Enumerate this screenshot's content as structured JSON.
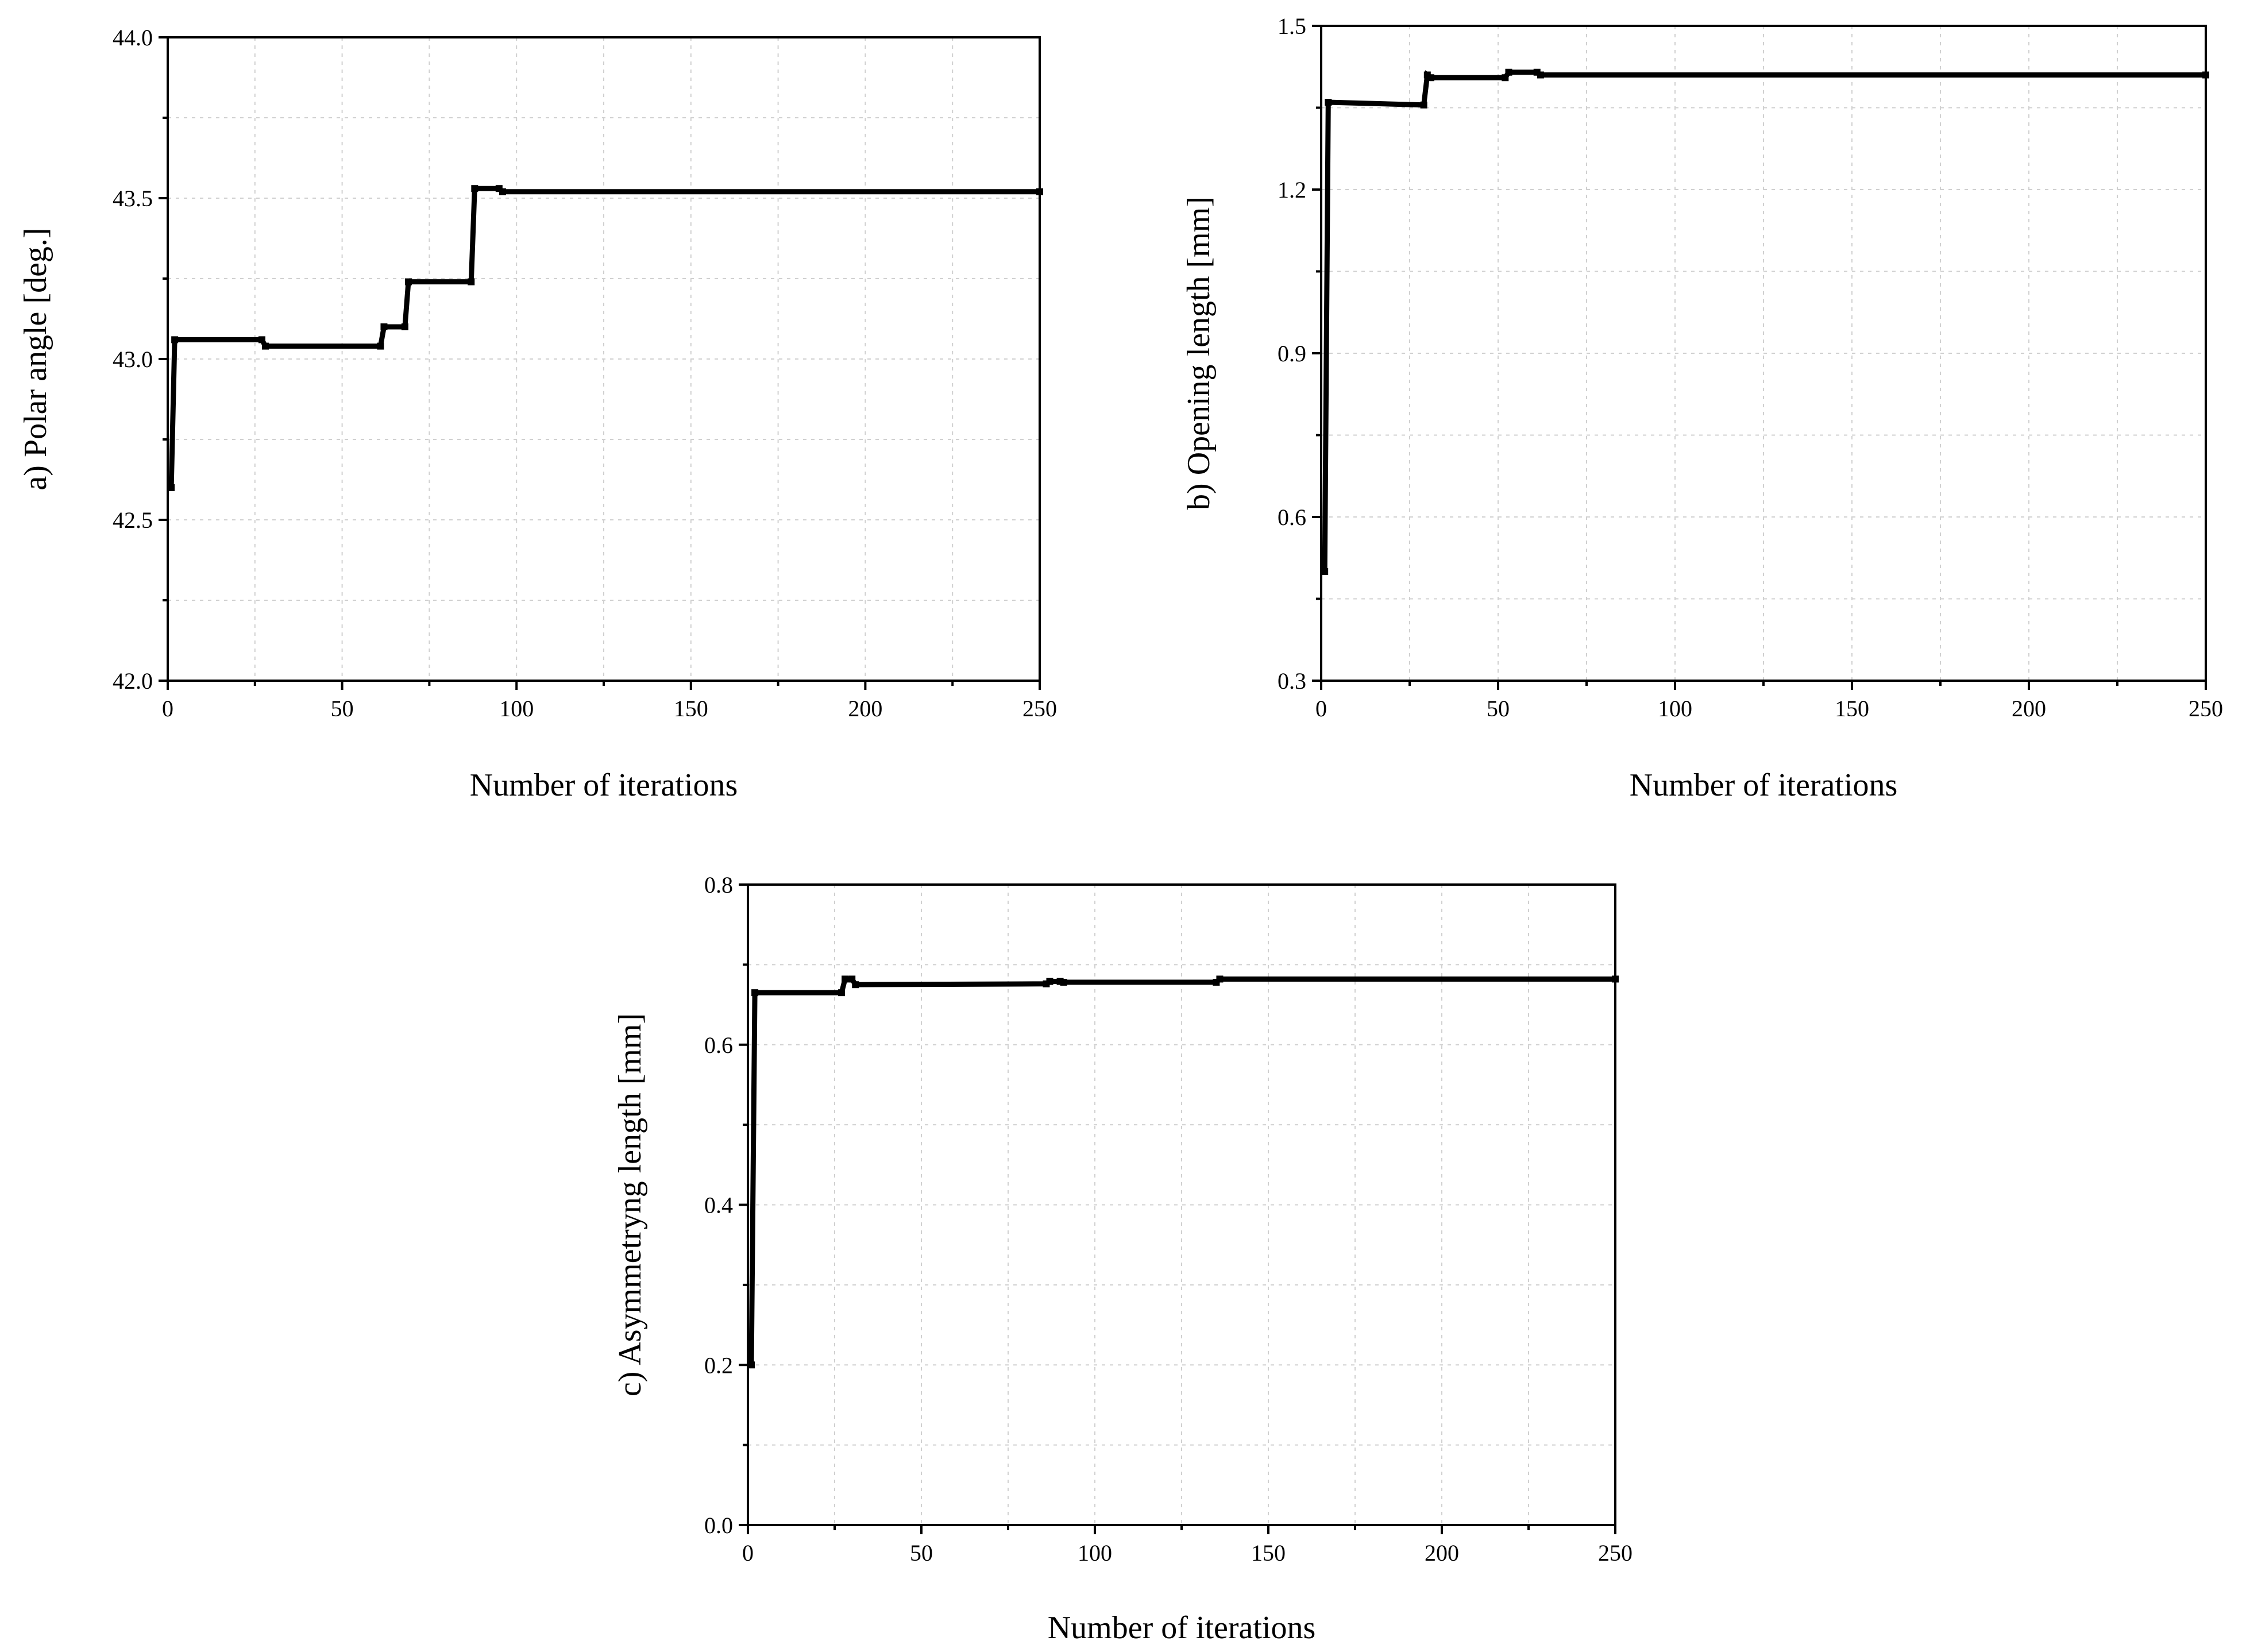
{
  "chart_data": [
    {
      "id": "a",
      "type": "line",
      "title": "",
      "xlabel": "Number of iterations",
      "ylabel": "a) Polar angle [deg.]",
      "xlim": [
        0,
        250
      ],
      "ylim": [
        42.0,
        44.0
      ],
      "xticks": [
        "0",
        "50",
        "100",
        "150",
        "200",
        "250"
      ],
      "yticks": [
        "42.0",
        "42.5",
        "43.0",
        "43.5",
        "44.0"
      ],
      "xtick_values": [
        0,
        50,
        100,
        150,
        200,
        250
      ],
      "ytick_values": [
        42.0,
        42.5,
        43.0,
        43.5,
        44.0
      ],
      "grid": true,
      "series": [
        {
          "name": "Polar angle",
          "x": [
            1,
            2,
            27,
            28,
            61,
            62,
            68,
            69,
            87,
            88,
            95,
            96,
            250
          ],
          "y": [
            42.6,
            43.06,
            43.06,
            43.04,
            43.04,
            43.1,
            43.1,
            43.24,
            43.24,
            43.53,
            43.53,
            43.52,
            43.52
          ]
        }
      ]
    },
    {
      "id": "b",
      "type": "line",
      "title": "",
      "xlabel": "Number of iterations",
      "ylabel": "b) Opening length [mm]",
      "xlim": [
        0,
        250
      ],
      "ylim": [
        0.3,
        1.5
      ],
      "xticks": [
        "0",
        "50",
        "100",
        "150",
        "200",
        "250"
      ],
      "yticks": [
        "0.3",
        "0.6",
        "0.9",
        "1.2",
        "1.5"
      ],
      "xtick_values": [
        0,
        50,
        100,
        150,
        200,
        250
      ],
      "ytick_values": [
        0.3,
        0.6,
        0.9,
        1.2,
        1.5
      ],
      "grid": true,
      "series": [
        {
          "name": "Opening length",
          "x": [
            1,
            2,
            29,
            30,
            31,
            52,
            53,
            61,
            62,
            250
          ],
          "y": [
            0.5,
            1.36,
            1.355,
            1.41,
            1.405,
            1.405,
            1.415,
            1.415,
            1.41,
            1.41
          ]
        }
      ]
    },
    {
      "id": "c",
      "type": "line",
      "title": "",
      "xlabel": "Number of iterations",
      "ylabel": "c) Asymmetryng length [mm]",
      "xlim": [
        0,
        250
      ],
      "ylim": [
        0.0,
        0.8
      ],
      "xticks": [
        "0",
        "50",
        "100",
        "150",
        "200",
        "250"
      ],
      "yticks": [
        "0.0",
        "0.2",
        "0.4",
        "0.6",
        "0.8"
      ],
      "xtick_values": [
        0,
        50,
        100,
        150,
        200,
        250
      ],
      "ytick_values": [
        0.0,
        0.2,
        0.4,
        0.6,
        0.8
      ],
      "grid": true,
      "series": [
        {
          "name": "Asymmetryng length",
          "x": [
            1,
            2,
            27,
            28,
            30,
            31,
            86,
            87,
            90,
            91,
            135,
            136,
            250
          ],
          "y": [
            0.2,
            0.665,
            0.665,
            0.682,
            0.682,
            0.675,
            0.676,
            0.679,
            0.679,
            0.678,
            0.678,
            0.682,
            0.682
          ]
        }
      ]
    }
  ]
}
